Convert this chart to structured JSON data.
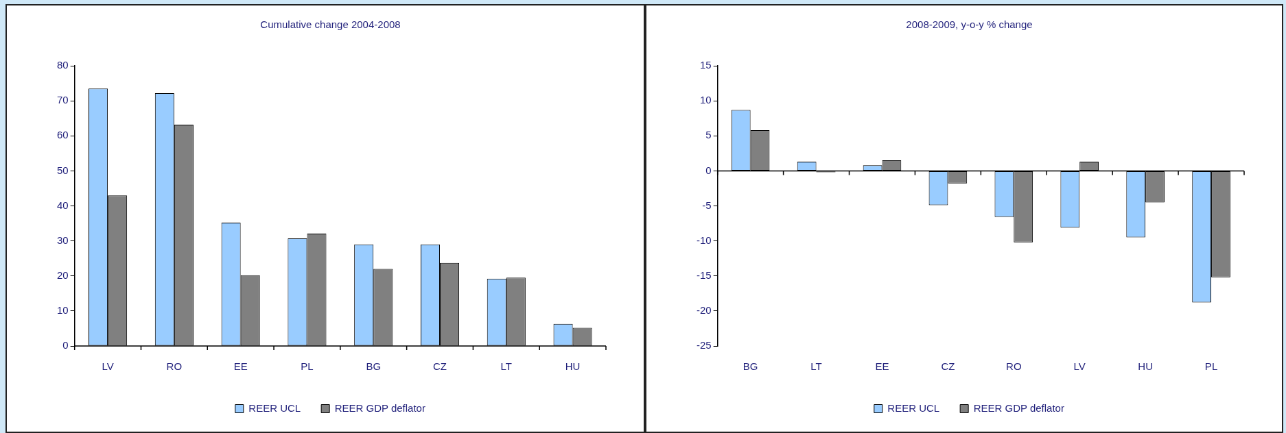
{
  "chart_data": [
    {
      "type": "bar",
      "title": "Cumulative change 2004-2008",
      "categories": [
        "LV",
        "RO",
        "EE",
        "PL",
        "BG",
        "CZ",
        "LT",
        "HU"
      ],
      "series": [
        {
          "name": "REER UCL",
          "color": "#99ccff",
          "values": [
            73.5,
            72.2,
            35.2,
            30.7,
            29,
            29,
            19.2,
            6.3
          ]
        },
        {
          "name": "REER GDP deflator",
          "color": "#808080",
          "values": [
            43,
            63.2,
            20.2,
            32.1,
            22,
            23.7,
            19.5,
            5.2
          ]
        }
      ],
      "ylim": [
        0,
        80
      ],
      "yticks": [
        0,
        10,
        20,
        30,
        40,
        50,
        60,
        70,
        80
      ],
      "legend": "bottom"
    },
    {
      "type": "bar",
      "title": "2008-2009, y-o-y % change",
      "categories": [
        "BG",
        "LT",
        "EE",
        "CZ",
        "RO",
        "LV",
        "HU",
        "PL"
      ],
      "series": [
        {
          "name": "REER UCL",
          "color": "#99ccff",
          "values": [
            8.7,
            1.3,
            0.8,
            -4.9,
            -6.6,
            -8.1,
            -9.5,
            -18.8
          ]
        },
        {
          "name": "REER GDP deflator",
          "color": "#808080",
          "values": [
            5.8,
            -0.2,
            1.5,
            -1.8,
            -10.2,
            1.3,
            -4.5,
            -15.2
          ]
        }
      ],
      "ylim": [
        -25,
        15
      ],
      "yticks": [
        -25,
        -20,
        -15,
        -10,
        -5,
        0,
        5,
        10,
        15
      ],
      "legend": "bottom"
    }
  ]
}
